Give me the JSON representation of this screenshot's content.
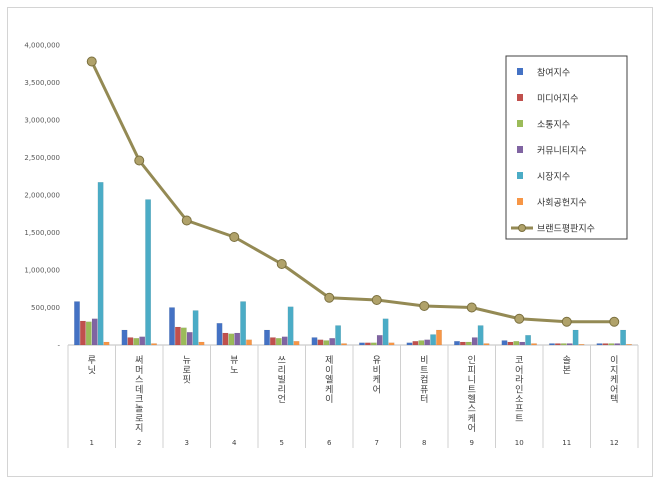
{
  "chart_data": {
    "type": "bar",
    "title": "",
    "xlabel": "",
    "ylabel": "",
    "ylim": [
      0,
      4000000
    ],
    "yticks": [
      "-",
      "500,000",
      "1,000,000",
      "1,500,000",
      "2,000,000",
      "2,500,000",
      "3,000,000",
      "3,500,000",
      "4,000,000"
    ],
    "categories": [
      "루닛",
      "써머스데크놀로지",
      "뉴로핏",
      "뷰노",
      "쓰리빌리언",
      "제이엘케이",
      "유비케어",
      "비트컴퓨터",
      "인피니트헬스케어",
      "코어라인소프트",
      "솔본",
      "이지케어텍"
    ],
    "ranks": [
      "1",
      "2",
      "3",
      "4",
      "5",
      "6",
      "7",
      "8",
      "9",
      "10",
      "11",
      "12"
    ],
    "series": [
      {
        "name": "참여지수",
        "kind": "bar",
        "color": "#4472c4",
        "values": [
          580000,
          200000,
          500000,
          290000,
          200000,
          100000,
          30000,
          30000,
          50000,
          60000,
          20000,
          20000
        ]
      },
      {
        "name": "미디어지수",
        "kind": "bar",
        "color": "#c0504d",
        "values": [
          320000,
          100000,
          240000,
          160000,
          100000,
          70000,
          30000,
          50000,
          40000,
          40000,
          20000,
          20000
        ]
      },
      {
        "name": "소통지수",
        "kind": "bar",
        "color": "#9bbb59",
        "values": [
          310000,
          90000,
          230000,
          150000,
          90000,
          60000,
          30000,
          60000,
          40000,
          50000,
          20000,
          20000
        ]
      },
      {
        "name": "커뮤니티지수",
        "kind": "bar",
        "color": "#8064a2",
        "values": [
          350000,
          110000,
          170000,
          160000,
          110000,
          90000,
          130000,
          70000,
          100000,
          40000,
          20000,
          20000
        ]
      },
      {
        "name": "시장지수",
        "kind": "bar",
        "color": "#4bacc6",
        "values": [
          2170000,
          1940000,
          460000,
          580000,
          510000,
          260000,
          350000,
          140000,
          260000,
          130000,
          200000,
          200000
        ]
      },
      {
        "name": "사회공헌지수",
        "kind": "bar",
        "color": "#f79646",
        "values": [
          40000,
          20000,
          40000,
          70000,
          50000,
          20000,
          30000,
          200000,
          20000,
          20000,
          10000,
          10000
        ]
      },
      {
        "name": "브랜드평판지수",
        "kind": "line",
        "color": "#948a54",
        "values": [
          3780000,
          2460000,
          1660000,
          1440000,
          1080000,
          630000,
          600000,
          520000,
          500000,
          350000,
          310000,
          310000
        ]
      }
    ],
    "legend": "right-top",
    "grid": false
  }
}
